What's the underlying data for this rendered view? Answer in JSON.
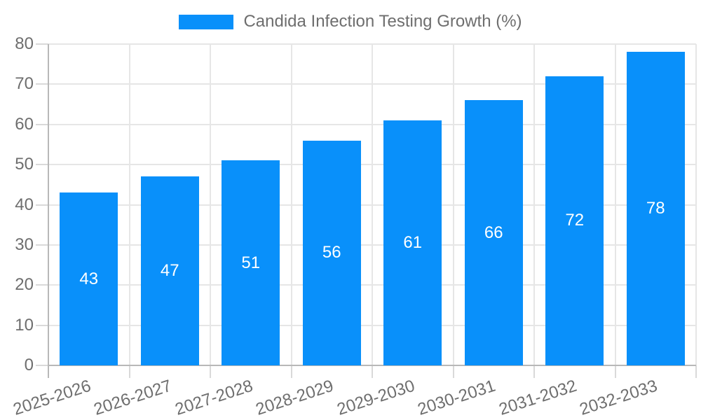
{
  "legend": {
    "label": "Candida Infection Testing Growth (%)"
  },
  "chart_data": {
    "type": "bar",
    "title": "",
    "series_name": "Candida Infection Testing Growth (%)",
    "categories": [
      "2025-2026",
      "2026-2027",
      "2027-2028",
      "2028-2029",
      "2029-2030",
      "2030-2031",
      "2031-2032",
      "2032-2033"
    ],
    "values": [
      43,
      47,
      51,
      56,
      61,
      66,
      72,
      78
    ],
    "xlabel": "",
    "ylabel": "",
    "ylim": [
      0,
      80
    ],
    "yticks": [
      0,
      10,
      20,
      30,
      40,
      50,
      60,
      70,
      80
    ],
    "grid": true,
    "legend_position": "top",
    "value_labels": "centered-inside-bars-white",
    "x_label_rotation_deg": -18
  },
  "colors": {
    "bar": "#0990fa",
    "grid": "#e6e6e6",
    "tick": "#d9d9d9",
    "axis": "#b8b8b8",
    "text": "#6e6e6e",
    "value_text": "#ffffff"
  }
}
